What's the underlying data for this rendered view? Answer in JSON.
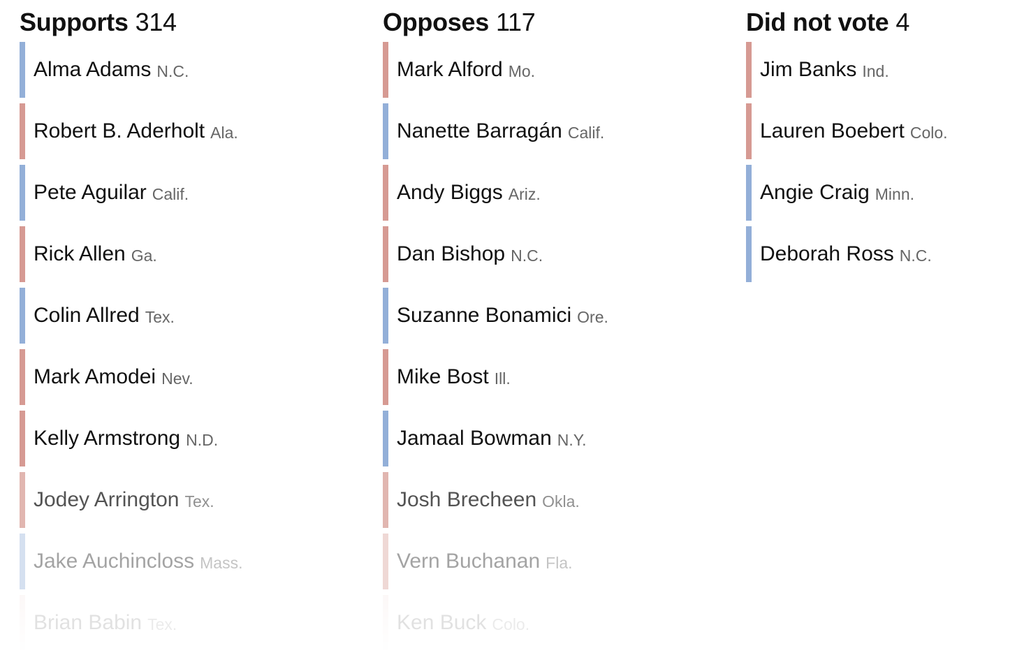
{
  "columns": [
    {
      "label": "Supports",
      "count": "314",
      "members": [
        {
          "name": "Alma Adams",
          "state": "N.C.",
          "party": "D"
        },
        {
          "name": "Robert B. Aderholt",
          "state": "Ala.",
          "party": "R"
        },
        {
          "name": "Pete Aguilar",
          "state": "Calif.",
          "party": "D"
        },
        {
          "name": "Rick Allen",
          "state": "Ga.",
          "party": "R"
        },
        {
          "name": "Colin Allred",
          "state": "Tex.",
          "party": "D"
        },
        {
          "name": "Mark Amodei",
          "state": "Nev.",
          "party": "R"
        },
        {
          "name": "Kelly Armstrong",
          "state": "N.D.",
          "party": "R"
        },
        {
          "name": "Jodey Arrington",
          "state": "Tex.",
          "party": "R"
        },
        {
          "name": "Jake Auchincloss",
          "state": "Mass.",
          "party": "D"
        },
        {
          "name": "Brian Babin",
          "state": "Tex.",
          "party": "R"
        }
      ]
    },
    {
      "label": "Opposes",
      "count": "117",
      "members": [
        {
          "name": "Mark Alford",
          "state": "Mo.",
          "party": "R"
        },
        {
          "name": "Nanette Barragán",
          "state": "Calif.",
          "party": "D"
        },
        {
          "name": "Andy Biggs",
          "state": "Ariz.",
          "party": "R"
        },
        {
          "name": "Dan Bishop",
          "state": "N.C.",
          "party": "R"
        },
        {
          "name": "Suzanne Bonamici",
          "state": "Ore.",
          "party": "D"
        },
        {
          "name": "Mike Bost",
          "state": "Ill.",
          "party": "R"
        },
        {
          "name": "Jamaal Bowman",
          "state": "N.Y.",
          "party": "D"
        },
        {
          "name": "Josh Brecheen",
          "state": "Okla.",
          "party": "R"
        },
        {
          "name": "Vern Buchanan",
          "state": "Fla.",
          "party": "R"
        },
        {
          "name": "Ken Buck",
          "state": "Colo.",
          "party": "R"
        }
      ]
    },
    {
      "label": "Did not vote",
      "count": "4",
      "members": [
        {
          "name": "Jim Banks",
          "state": "Ind.",
          "party": "R"
        },
        {
          "name": "Lauren Boebert",
          "state": "Colo.",
          "party": "R"
        },
        {
          "name": "Angie Craig",
          "state": "Minn.",
          "party": "D"
        },
        {
          "name": "Deborah Ross",
          "state": "N.C.",
          "party": "D"
        }
      ]
    }
  ],
  "colors": {
    "republican_bar": "#d69a93",
    "democrat_bar": "#93afd8",
    "name_text": "#111111",
    "state_text": "#666666"
  }
}
